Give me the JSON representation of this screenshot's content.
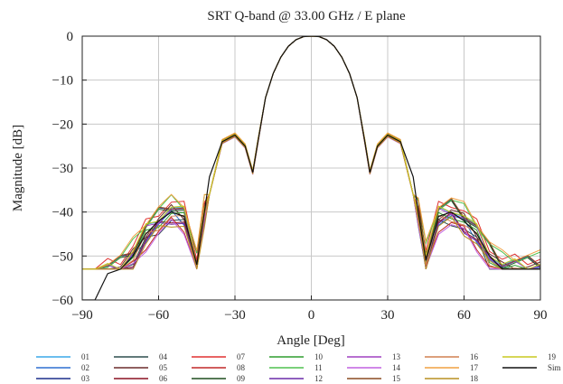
{
  "chart_data": {
    "type": "line",
    "title": "SRT Q-band @ 33.00 GHz / E plane",
    "xlabel": "Angle [Deg]",
    "ylabel": "Magnitude [dB]",
    "xlim": [
      -90,
      90
    ],
    "ylim": [
      -60,
      0
    ],
    "xticks": [
      -90,
      -60,
      -30,
      0,
      30,
      60,
      90
    ],
    "yticks": [
      0,
      -10,
      -20,
      -30,
      -40,
      -50,
      -60
    ],
    "grid": true,
    "legend_position": "bottom",
    "x": [
      -90,
      -85,
      -80,
      -75,
      -70,
      -65,
      -60,
      -55,
      -50,
      -45,
      -42,
      -40,
      -35,
      -30,
      -26,
      -23,
      -21,
      -18,
      -15,
      -12,
      -9,
      -6,
      -3,
      0,
      3,
      6,
      9,
      12,
      15,
      18,
      21,
      23,
      26,
      30,
      35,
      40,
      42,
      45,
      50,
      55,
      60,
      65,
      70,
      75,
      80,
      85,
      90
    ],
    "sim_values": [
      -60,
      -60,
      -54,
      -53,
      -50,
      -45,
      -42,
      -40,
      -41,
      -52,
      -40,
      -32,
      -24,
      -22.5,
      -25,
      -31,
      -24,
      -14,
      -8.5,
      -4.8,
      -2.3,
      -0.8,
      -0.1,
      0,
      -0.1,
      -0.8,
      -2.3,
      -4.8,
      -8.5,
      -14,
      -24,
      -31,
      -25,
      -22.5,
      -24,
      -32,
      -40,
      -51,
      -41,
      -40,
      -42,
      -45,
      -50,
      -53,
      -53,
      -53,
      -53
    ],
    "series": [
      {
        "name": "01",
        "color": "#3aa8e8",
        "offset": 0.6
      },
      {
        "name": "02",
        "color": "#2f6fd0",
        "offset": -0.5
      },
      {
        "name": "03",
        "color": "#1c2f8a",
        "offset": 1.1
      },
      {
        "name": "04",
        "color": "#2d4f4f",
        "offset": -1.2
      },
      {
        "name": "05",
        "color": "#6b2b2b",
        "offset": 0.3
      },
      {
        "name": "06",
        "color": "#8a1020",
        "offset": -0.8
      },
      {
        "name": "07",
        "color": "#e03030",
        "offset": 1.4
      },
      {
        "name": "08",
        "color": "#c02828",
        "offset": -1.5
      },
      {
        "name": "09",
        "color": "#1e4d1e",
        "offset": 0.9
      },
      {
        "name": "10",
        "color": "#2e9e2e",
        "offset": -0.2
      },
      {
        "name": "11",
        "color": "#4ec04e",
        "offset": 1.7
      },
      {
        "name": "12",
        "color": "#6a2aa8",
        "offset": -1.0
      },
      {
        "name": "13",
        "color": "#a040c0",
        "offset": 0.4
      },
      {
        "name": "14",
        "color": "#c060e0",
        "offset": -1.8
      },
      {
        "name": "15",
        "color": "#8a4a20",
        "offset": 1.2
      },
      {
        "name": "16",
        "color": "#d08050",
        "offset": -0.6
      },
      {
        "name": "17",
        "color": "#f0a040",
        "offset": 2.0
      },
      {
        "name": "18",
        "color": "#b89020",
        "offset": -1.4
      },
      {
        "name": "19",
        "color": "#c8c820",
        "offset": 0.7
      },
      {
        "name": "Sim",
        "color": "#111111",
        "offset": 0
      }
    ]
  }
}
